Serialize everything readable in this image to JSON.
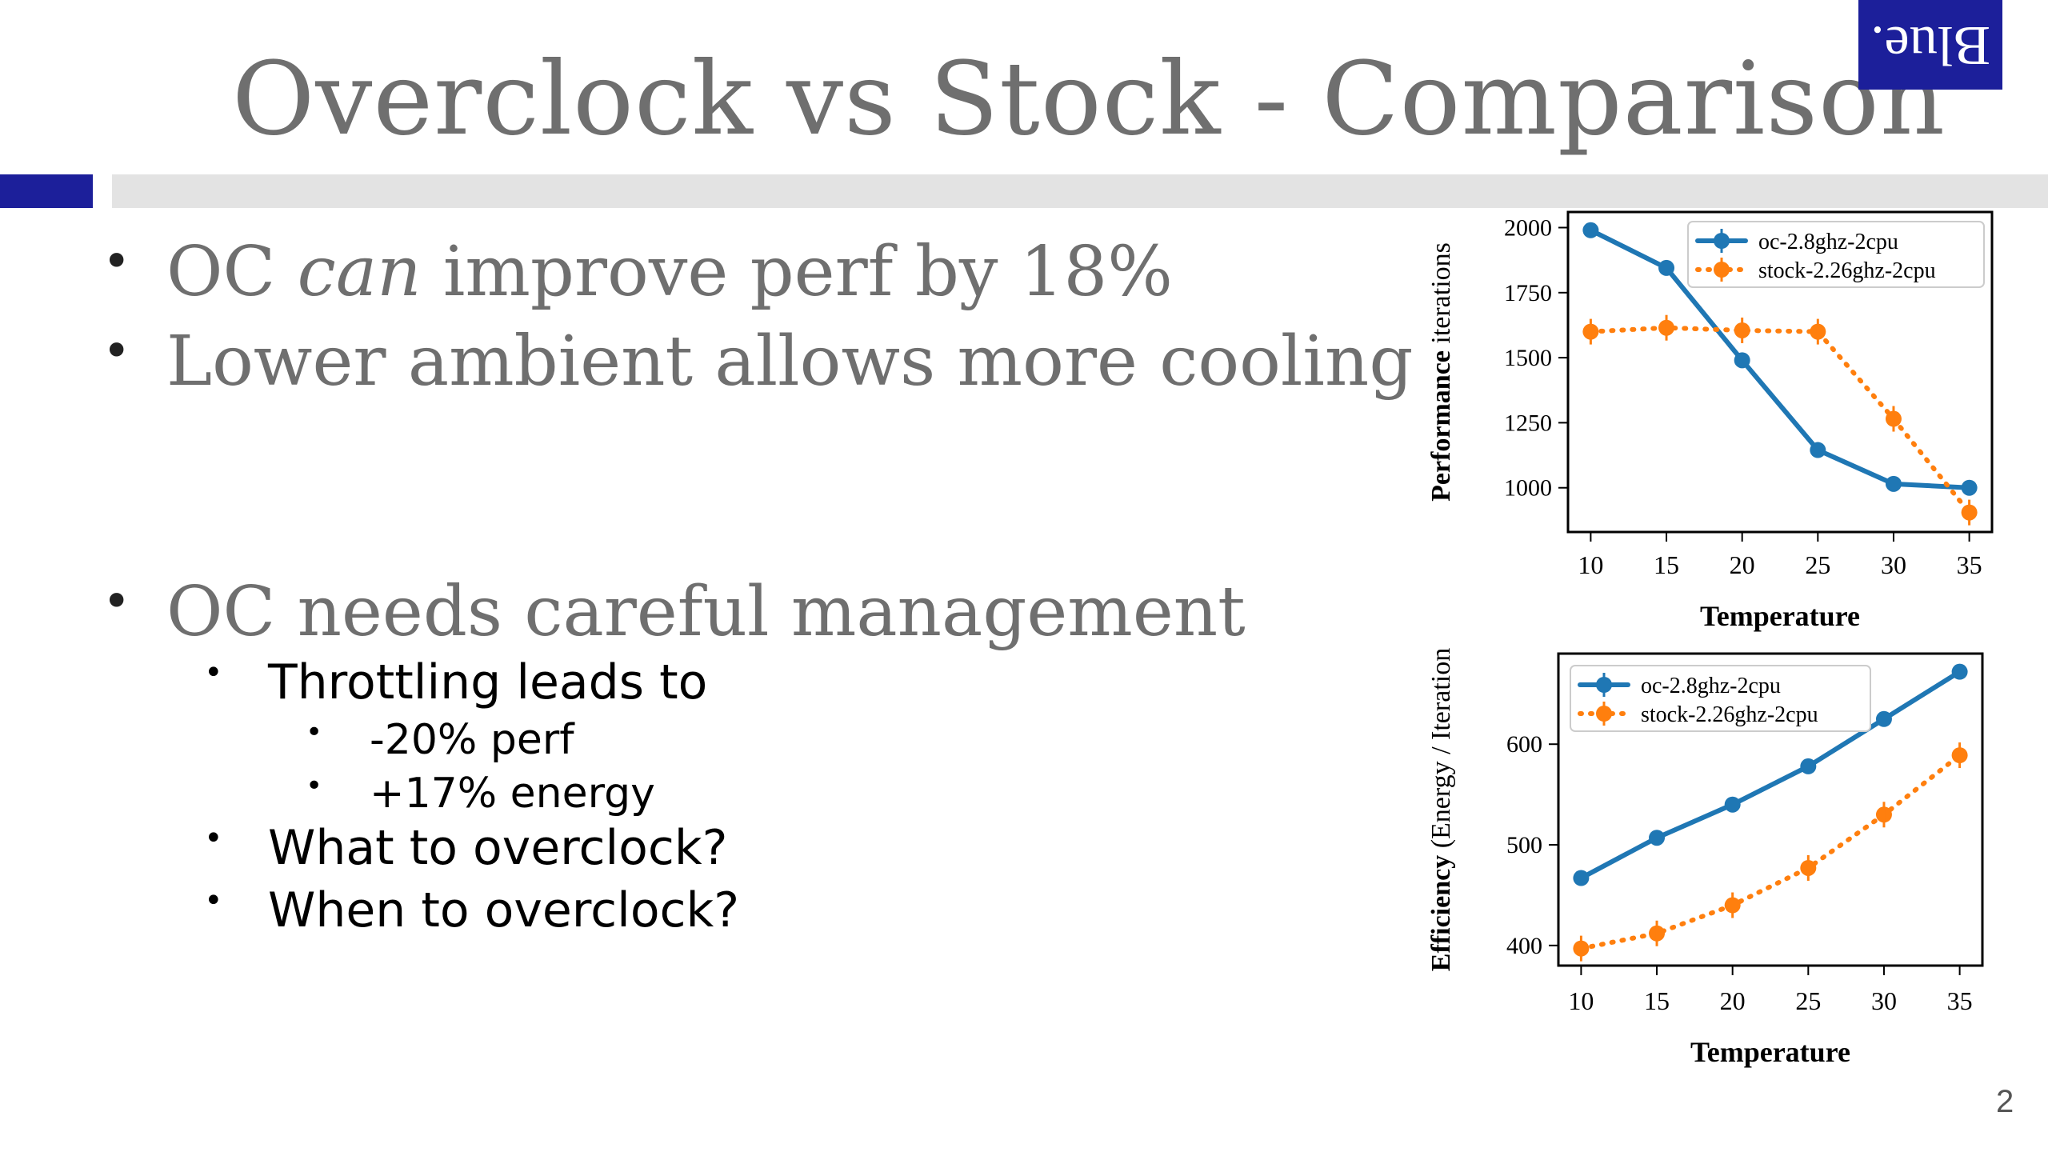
{
  "slide": {
    "title": "Overclock vs Stock - Comparison",
    "logo_text": "Blue.",
    "page_number": "2",
    "bullet_symbol": "•",
    "bullets": {
      "oc_can_improve": {
        "pre": "OC ",
        "em": "can",
        "post": " improve perf by 18%"
      },
      "lower_ambient": "Lower ambient allows more cooling",
      "careful_management": "OC needs careful management",
      "throttling": "Throttling leads to",
      "perf_drop": "-20% perf",
      "energy_rise": "+17% energy",
      "what_to_oc": "What to overclock?",
      "when_to_oc": "When to overclock?"
    },
    "colors": {
      "title_gray": "#6f6f6f",
      "accent_blue": "#1c1f9a",
      "rule_gray": "#e3e3e3",
      "series_blue": "#1f77b4",
      "series_orange": "#ff7f0e"
    }
  },
  "chart_data": [
    {
      "type": "line",
      "xlabel": "Temperature",
      "ylabel_bold": "Performance",
      "ylabel_normal": "iterations",
      "x": [
        10,
        15,
        20,
        25,
        30,
        35
      ],
      "xticks": [
        10,
        15,
        20,
        25,
        30,
        35
      ],
      "xlim": [
        8.5,
        36.5
      ],
      "ylim": [
        830,
        2060
      ],
      "yticks": [
        1000,
        1250,
        1500,
        1750,
        2000
      ],
      "legend_position": "top-right",
      "series": [
        {
          "name": "oc-2.8ghz-2cpu",
          "values": [
            1990,
            1845,
            1490,
            1145,
            1015,
            1000
          ],
          "style": "solid",
          "color": "#1f77b4"
        },
        {
          "name": "stock-2.26ghz-2cpu",
          "values": [
            1600,
            1615,
            1605,
            1600,
            1265,
            905
          ],
          "style": "dotted",
          "color": "#ff7f0e"
        }
      ]
    },
    {
      "type": "line",
      "xlabel": "Temperature",
      "ylabel_bold": "Efficiency",
      "ylabel_normal": "(Energy / Iteration",
      "x": [
        10,
        15,
        20,
        25,
        30,
        35
      ],
      "xticks": [
        10,
        15,
        20,
        25,
        30,
        35
      ],
      "xlim": [
        8.5,
        36.5
      ],
      "ylim": [
        380,
        690
      ],
      "yticks": [
        400,
        500,
        600
      ],
      "legend_position": "top-left",
      "series": [
        {
          "name": "oc-2.8ghz-2cpu",
          "values": [
            467,
            507,
            540,
            578,
            625,
            672
          ],
          "style": "solid",
          "color": "#1f77b4"
        },
        {
          "name": "stock-2.26ghz-2cpu",
          "values": [
            397,
            412,
            440,
            477,
            530,
            589
          ],
          "style": "dotted",
          "color": "#ff7f0e"
        }
      ]
    }
  ]
}
